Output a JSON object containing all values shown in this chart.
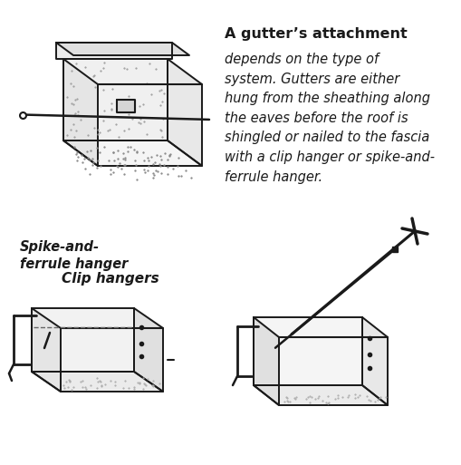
{
  "background_color": "#ffffff",
  "title_bold": "A gutter’s attachment",
  "body_text": "depends on the type of\nsystem. Gutters are either\nhung from the sheathing along\nthe eaves before the roof is\nshingled or nailed to the fascia\nwith a clip hanger or spike-and-\nferrule hanger.",
  "label_spike": "Spike-and-\nferrule hanger",
  "label_clip": "Clip hangers",
  "fig_width": 5.1,
  "fig_height": 5.13,
  "dpi": 100,
  "text_color": "#1a1a1a",
  "line_color": "#1a1a1a"
}
